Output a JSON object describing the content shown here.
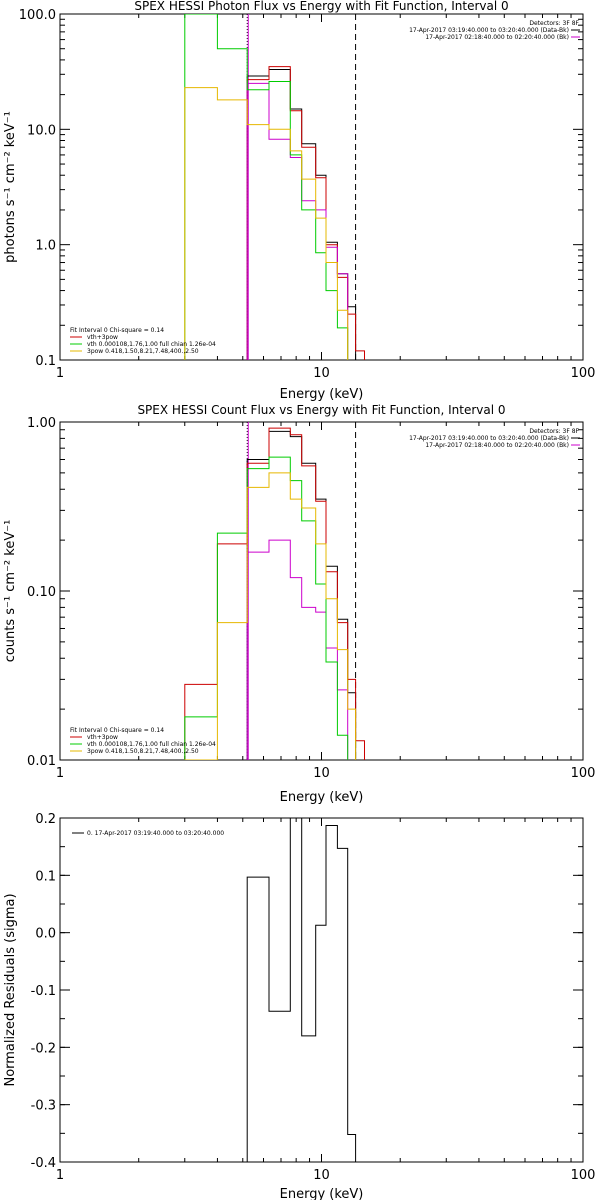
{
  "chart_data": [
    {
      "type": "line",
      "title": "SPEX HESSI Photon Flux vs Energy with Fit Function, Interval 0",
      "xlabel": "Energy (keV)",
      "ylabel": "photons s⁻¹ cm⁻² keV⁻¹",
      "xscale": "log",
      "yscale": "log",
      "xlim": [
        1,
        100
      ],
      "ylim": [
        0.1,
        100
      ],
      "xticks": [
        {
          "v": 1,
          "label": "1"
        },
        {
          "v": 10,
          "label": "10"
        },
        {
          "v": 100,
          "label": "100"
        }
      ],
      "yticks": [
        {
          "v": 0.1,
          "label": "0.1"
        },
        {
          "v": 1,
          "label": "1.0"
        },
        {
          "v": 10,
          "label": "10.0"
        },
        {
          "v": 100,
          "label": "100.0"
        }
      ],
      "vlines": [
        {
          "x": 5.2,
          "style": "dotted",
          "color": "#000000"
        },
        {
          "x": 5.2,
          "style": "solid",
          "color": "#cc00cc"
        },
        {
          "x": 13.5,
          "style": "dashed",
          "color": "#000000"
        }
      ],
      "legend_right": {
        "header": "Detectors: 3F 8F",
        "entries": [
          {
            "text": "17-Apr-2017 03:19:40.000 to 03:20:40.000 (Data-Bk)",
            "color": "#000000"
          },
          {
            "text": "17-Apr-2017 02:18:40.000 to 02:20:40.000 (Bk)",
            "color": "#cc00cc"
          }
        ]
      },
      "legend_left": {
        "header": "Fit Interval 0   Chi-square = 0.14",
        "entries": [
          {
            "text": "vth+3pow",
            "color": "#cc0000"
          },
          {
            "text": "vth 0.000108,1.76,1.00  full chian 1.26e-04",
            "color": "#00cc00"
          },
          {
            "text": "3pow 0.418,1.50,8.21,7.48,400.,2.50",
            "color": "#e6b800"
          }
        ]
      },
      "series": [
        {
          "color": "#000000",
          "edges": [
            5.2,
            6.3,
            7.6,
            8.4,
            9.5,
            10.4,
            11.5,
            12.6,
            13.5
          ],
          "values": [
            29,
            33,
            15,
            7.5,
            4.0,
            1.05,
            0.56,
            0.29
          ]
        },
        {
          "color": "#cc0000",
          "edges": [
            5.2,
            6.3,
            7.6,
            8.4,
            9.5,
            10.4,
            11.5,
            12.6,
            13.5,
            14.6
          ],
          "values": [
            27,
            35,
            14.5,
            7.0,
            3.8,
            1.0,
            0.52,
            0.25,
            0.12
          ]
        },
        {
          "color": "#cc00cc",
          "edges": [
            5.2,
            6.3,
            7.6,
            8.4,
            9.5,
            10.4,
            11.5,
            12.6
          ],
          "values": [
            25,
            8.2,
            5.7,
            2.4,
            2.0,
            0.95,
            0.56
          ]
        },
        {
          "color": "#00cc00",
          "edges": [
            3.0,
            4.0,
            5.2,
            6.3,
            7.6,
            8.4,
            9.5,
            10.4,
            11.5,
            12.6
          ],
          "values": [
            100,
            50,
            22,
            26,
            6.0,
            2.0,
            0.85,
            0.4,
            0.19
          ]
        },
        {
          "color": "#e6b800",
          "edges": [
            3.0,
            4.0,
            5.2,
            6.3,
            7.6,
            8.4,
            9.5,
            10.4,
            11.5,
            12.6
          ],
          "values": [
            23,
            18,
            11,
            10,
            6.5,
            3.7,
            1.7,
            0.7,
            0.27
          ]
        }
      ]
    },
    {
      "type": "line",
      "title": "SPEX HESSI Count Flux vs Energy with Fit Function, Interval 0",
      "xlabel": "Energy (keV)",
      "ylabel": "counts s⁻¹ cm⁻² keV⁻¹",
      "xscale": "log",
      "yscale": "log",
      "xlim": [
        1,
        100
      ],
      "ylim": [
        0.01,
        1
      ],
      "xticks": [
        {
          "v": 1,
          "label": "1"
        },
        {
          "v": 10,
          "label": "10"
        },
        {
          "v": 100,
          "label": "100"
        }
      ],
      "yticks": [
        {
          "v": 0.01,
          "label": "0.01"
        },
        {
          "v": 0.1,
          "label": "0.10"
        },
        {
          "v": 1,
          "label": "1.00"
        }
      ],
      "vlines": [
        {
          "x": 5.2,
          "style": "dotted",
          "color": "#000000"
        },
        {
          "x": 5.2,
          "style": "solid",
          "color": "#cc00cc"
        },
        {
          "x": 13.5,
          "style": "dashed",
          "color": "#000000"
        }
      ],
      "legend_right": {
        "header": "Detectors: 3F 8F",
        "entries": [
          {
            "text": "17-Apr-2017 03:19:40.000 to 03:20:40.000 (Data-Bk)",
            "color": "#000000"
          },
          {
            "text": "17-Apr-2017 02:18:40.000 to 02:20:40.000 (Bk)",
            "color": "#cc00cc"
          }
        ]
      },
      "legend_left": {
        "header": "Fit Interval 0   Chi-square = 0.14",
        "entries": [
          {
            "text": "vth+3pow",
            "color": "#cc0000"
          },
          {
            "text": "vth 0.000108,1.76,1.00  full chian 1.26e-04",
            "color": "#00cc00"
          },
          {
            "text": "3pow 0.418,1.50,8.21,7.48,400.,2.50",
            "color": "#e6b800"
          }
        ]
      },
      "series": [
        {
          "color": "#000000",
          "edges": [
            5.2,
            6.3,
            7.6,
            8.4,
            9.5,
            10.4,
            11.5,
            12.6,
            13.5
          ],
          "values": [
            0.6,
            0.88,
            0.82,
            0.57,
            0.35,
            0.14,
            0.068,
            0.025
          ]
        },
        {
          "color": "#cc0000",
          "edges": [
            3.0,
            4.0,
            5.2,
            6.3,
            7.6,
            8.4,
            9.5,
            10.4,
            11.5,
            12.6,
            13.5,
            14.6
          ],
          "values": [
            0.028,
            0.19,
            0.57,
            0.92,
            0.84,
            0.55,
            0.34,
            0.13,
            0.065,
            0.03,
            0.013
          ]
        },
        {
          "color": "#cc00cc",
          "edges": [
            5.2,
            6.3,
            7.6,
            8.4,
            9.5,
            10.4,
            11.5,
            12.6
          ],
          "values": [
            0.17,
            0.2,
            0.12,
            0.08,
            0.075,
            0.046,
            0.026
          ]
        },
        {
          "color": "#00cc00",
          "edges": [
            3.0,
            4.0,
            5.2,
            6.3,
            7.6,
            8.4,
            9.5,
            10.4,
            11.5,
            12.6
          ],
          "values": [
            0.018,
            0.22,
            0.53,
            0.62,
            0.45,
            0.26,
            0.11,
            0.038,
            0.014
          ]
        },
        {
          "color": "#e6b800",
          "edges": [
            3.0,
            4.0,
            5.2,
            6.3,
            7.6,
            8.4,
            9.5,
            10.4,
            11.5,
            12.6,
            13.5
          ],
          "values": [
            0.01,
            0.065,
            0.41,
            0.5,
            0.35,
            0.31,
            0.19,
            0.09,
            0.045,
            0.02
          ]
        }
      ]
    },
    {
      "type": "line",
      "title": "",
      "xlabel": "Energy (keV)",
      "ylabel": "Normalized Residuals (sigma)",
      "xscale": "log",
      "yscale": "linear",
      "xlim": [
        1,
        100
      ],
      "ylim": [
        -0.4,
        0.2
      ],
      "xticks": [
        {
          "v": 1,
          "label": "1"
        },
        {
          "v": 10,
          "label": "10"
        },
        {
          "v": 100,
          "label": "100"
        }
      ],
      "yticks": [
        {
          "v": -0.4,
          "label": "-0.4"
        },
        {
          "v": -0.3,
          "label": "-0.3"
        },
        {
          "v": -0.2,
          "label": "-0.2"
        },
        {
          "v": -0.1,
          "label": "-0.1"
        },
        {
          "v": 0,
          "label": "0.0"
        },
        {
          "v": 0.1,
          "label": "0.1"
        },
        {
          "v": 0.2,
          "label": "0.2"
        }
      ],
      "vlines": [],
      "legend_left_top": {
        "entries": [
          {
            "text": "0. 17-Apr-2017 03:19:40.000 to 03:20:40.000",
            "color": "#000000"
          }
        ]
      },
      "series": [
        {
          "color": "#000000",
          "drop_to_bottom": true,
          "edges": [
            5.2,
            6.3,
            7.6,
            8.4,
            9.5,
            10.4,
            11.5,
            12.6,
            13.5
          ],
          "values": [
            0.097,
            -0.137,
            0.2,
            -0.18,
            0.013,
            0.187,
            0.147,
            -0.352
          ]
        }
      ]
    }
  ]
}
